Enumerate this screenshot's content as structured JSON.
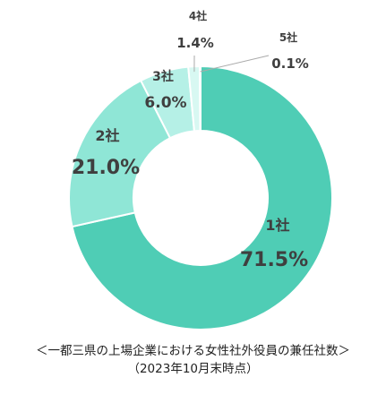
{
  "chart_data": {
    "type": "pie",
    "donut": true,
    "categories": [
      "1社",
      "2社",
      "3社",
      "4社",
      "5社"
    ],
    "values": [
      71.5,
      21.0,
      6.0,
      1.4,
      0.1
    ],
    "value_labels": [
      "71.5%",
      "21.0%",
      "6.0%",
      "1.4%",
      "0.1%"
    ],
    "colors": [
      "#4fcdb5",
      "#8fe6d6",
      "#b5f0e6",
      "#d8f8f2",
      "#ecfcf9"
    ],
    "caption_line1": "＜一都三県の上場企業における女性社外役員の兼任社数＞",
    "caption_line2": "（2023年10月末時点）"
  }
}
